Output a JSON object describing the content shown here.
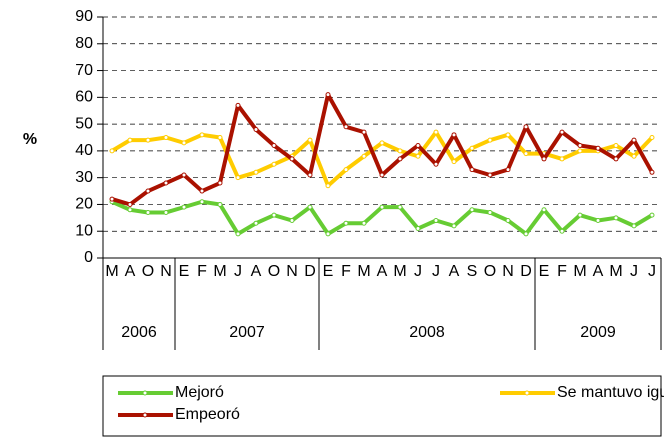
{
  "chart_data": {
    "type": "line",
    "y_label": "%",
    "groups": [
      {
        "label": "2006",
        "categories": [
          "M",
          "A",
          "O",
          "N"
        ]
      },
      {
        "label": "2007",
        "categories": [
          "E",
          "F",
          "M",
          "J",
          "A",
          "O",
          "N",
          "D"
        ]
      },
      {
        "label": "2008",
        "categories": [
          "E",
          "F",
          "M",
          "A",
          "M",
          "J",
          "J",
          "A",
          "S",
          "O",
          "N",
          "D"
        ]
      },
      {
        "label": "2009",
        "categories": [
          "E",
          "F",
          "M",
          "A",
          "M",
          "J",
          "J"
        ]
      }
    ],
    "series": [
      {
        "name": "Mejoró",
        "color": "#66cc33",
        "values": [
          21,
          18,
          17,
          17,
          19,
          21,
          20,
          9,
          13,
          16,
          14,
          19,
          9,
          13,
          13,
          19,
          19,
          11,
          14,
          12,
          18,
          17,
          14,
          9,
          18,
          10,
          16,
          14,
          15,
          12,
          16
        ]
      },
      {
        "name": "Se mantuvo igual",
        "color": "#ffcc00",
        "values": [
          40,
          44,
          44,
          45,
          43,
          46,
          45,
          30,
          32,
          35,
          38,
          44,
          27,
          33,
          38,
          43,
          40,
          38,
          47,
          36,
          41,
          44,
          46,
          39,
          39,
          37,
          40,
          40,
          42,
          38,
          45
        ]
      },
      {
        "name": "Empeoró",
        "color": "#aa1100",
        "values": [
          22,
          20,
          25,
          28,
          31,
          25,
          28,
          57,
          48,
          42,
          37,
          31,
          61,
          49,
          47,
          31,
          37,
          42,
          35,
          46,
          33,
          31,
          33,
          49,
          37,
          47,
          42,
          41,
          37,
          44,
          32
        ]
      }
    ],
    "ylim": [
      0,
      90
    ],
    "yticks": [
      0,
      10,
      20,
      30,
      40,
      50,
      60,
      70,
      80,
      90
    ],
    "grid": true
  }
}
